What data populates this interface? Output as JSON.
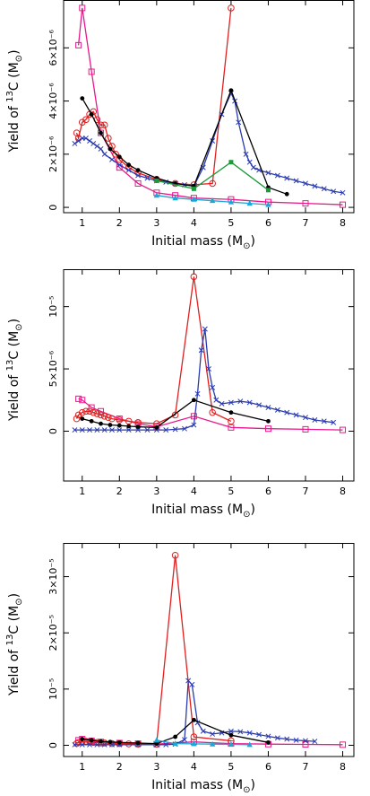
{
  "chart_data": [
    {
      "type": "line",
      "xlabel": "Initial mass (M",
      "xlabel_sub": "⊙",
      "xlabel_end": ")",
      "ylabel": "Yield of ",
      "ylabel_sup": "13",
      "ylabel_end": "C (M",
      "ylabel_sub": "⊙",
      "ylabel_close": ")",
      "xlim": [
        0.5,
        8.3
      ],
      "ylim": [
        -2e-07,
        7.8e-06
      ],
      "xticks": [
        1,
        2,
        3,
        4,
        5,
        6,
        7,
        8
      ],
      "xtick_labels": [
        "1",
        "2",
        "3",
        "4",
        "5",
        "6",
        "7",
        "8"
      ],
      "yticks": [
        0,
        2e-06,
        4e-06,
        6e-06
      ],
      "ytick_labels": [
        "0",
        "2×10⁻⁶",
        "4×10⁻⁶",
        "6×10⁻⁶"
      ],
      "series": [
        {
          "color": "#e8198b",
          "marker": "square",
          "x": [
            0.9,
            1.0,
            1.25,
            1.5,
            2.0,
            2.5,
            3.0,
            3.5,
            4.0,
            5.0,
            6.0,
            7.0,
            8.0
          ],
          "y": [
            6.1e-06,
            7.5e-06,
            5.1e-06,
            2.8e-06,
            1.5e-06,
            9e-07,
            5.5e-07,
            4.5e-07,
            3.5e-07,
            3e-07,
            2e-07,
            1.5e-07,
            1e-07
          ]
        },
        {
          "color": "#e02020",
          "marker": "circle",
          "x": [
            0.85,
            0.9,
            1.0,
            1.1,
            1.2,
            1.3,
            1.4,
            1.5,
            1.6,
            1.7,
            1.8,
            1.9,
            2.0,
            2.25,
            2.5,
            3.0,
            3.5,
            4.0,
            4.5,
            5.0
          ],
          "y": [
            2.8e-06,
            2.6e-06,
            3.2e-06,
            3.3e-06,
            3.5e-06,
            3.6e-06,
            3.3e-06,
            3.1e-06,
            3.1e-06,
            2.6e-06,
            2.3e-06,
            2e-06,
            1.8e-06,
            1.5e-06,
            1.3e-06,
            1.05e-06,
            9e-07,
            8.5e-07,
            9e-07,
            7.5e-06
          ]
        },
        {
          "color": "#2a3bb0",
          "marker": "cross",
          "x": [
            0.8,
            0.9,
            1.0,
            1.1,
            1.2,
            1.3,
            1.4,
            1.5,
            1.6,
            1.8,
            2.0,
            2.25,
            2.5,
            2.75,
            3.0,
            3.25,
            3.5,
            3.75,
            4.0,
            4.25,
            4.5,
            4.75,
            5.0,
            5.1,
            5.2,
            5.4,
            5.5,
            5.6,
            5.75,
            6.0,
            6.25,
            6.5,
            6.75,
            7.0,
            7.25,
            7.5,
            7.75,
            8.0
          ],
          "y": [
            2.4e-06,
            2.5e-06,
            2.6e-06,
            2.6e-06,
            2.5e-06,
            2.4e-06,
            2.3e-06,
            2.2e-06,
            2e-06,
            1.8e-06,
            1.6e-06,
            1.4e-06,
            1.2e-06,
            1.1e-06,
            1e-06,
            9.5e-07,
            9e-07,
            8.5e-07,
            8e-07,
            1.5e-06,
            2.5e-06,
            3.5e-06,
            4.3e-06,
            4e-06,
            3.2e-06,
            2e-06,
            1.7e-06,
            1.5e-06,
            1.4e-06,
            1.3e-06,
            1.2e-06,
            1.1e-06,
            1e-06,
            9e-07,
            8e-07,
            7e-07,
            6e-07,
            5.5e-07
          ]
        },
        {
          "color": "#000000",
          "marker": "dot",
          "x": [
            1.0,
            1.25,
            1.5,
            1.75,
            2.0,
            2.25,
            2.5,
            3.0,
            3.5,
            4.0,
            5.0,
            6.0,
            6.5
          ],
          "y": [
            4.1e-06,
            3.5e-06,
            2.8e-06,
            2.2e-06,
            1.9e-06,
            1.6e-06,
            1.4e-06,
            1.1e-06,
            9e-07,
            8e-07,
            4.4e-06,
            7.5e-07,
            5e-07
          ]
        },
        {
          "color": "#1a9a3a",
          "marker": "square-filled",
          "x": [
            3.0,
            4.0,
            5.0,
            6.0
          ],
          "y": [
            1e-06,
            7e-07,
            1.7e-06,
            6.5e-07
          ]
        },
        {
          "color": "#1aa8d8",
          "marker": "triangle",
          "x": [
            3.0,
            3.5,
            4.0,
            4.5,
            5.0,
            5.5,
            6.0
          ],
          "y": [
            4.5e-07,
            3.5e-07,
            3e-07,
            2.5e-07,
            2e-07,
            1.5e-07,
            1e-07
          ]
        }
      ]
    },
    {
      "type": "line",
      "xlabel": "Initial mass (M",
      "xlabel_sub": "⊙",
      "xlabel_end": ")",
      "ylabel": "Yield of ",
      "ylabel_sup": "13",
      "ylabel_end": "C (M",
      "ylabel_sub": "⊙",
      "ylabel_close": ")",
      "xlim": [
        0.5,
        8.3
      ],
      "ylim": [
        -4e-06,
        1.3e-05
      ],
      "xticks": [
        1,
        2,
        3,
        4,
        5,
        6,
        7,
        8
      ],
      "xtick_labels": [
        "1",
        "2",
        "3",
        "4",
        "5",
        "6",
        "7",
        "8"
      ],
      "yticks": [
        0,
        5e-06,
        1e-05
      ],
      "ytick_labels": [
        "0",
        "5×10⁻⁶",
        "10⁻⁵"
      ],
      "series": [
        {
          "color": "#e8198b",
          "marker": "square",
          "x": [
            0.9,
            1.0,
            1.25,
            1.5,
            2.0,
            2.5,
            3.0,
            4.0,
            5.0,
            6.0,
            7.0,
            8.0
          ],
          "y": [
            2.6e-06,
            2.5e-06,
            1.9e-06,
            1.6e-06,
            1e-06,
            6e-07,
            3.5e-07,
            1.2e-06,
            3e-07,
            2e-07,
            1.5e-07,
            1e-07
          ]
        },
        {
          "color": "#e02020",
          "marker": "circle",
          "x": [
            0.85,
            0.9,
            1.0,
            1.1,
            1.2,
            1.3,
            1.4,
            1.5,
            1.6,
            1.7,
            1.8,
            2.0,
            2.25,
            2.5,
            3.0,
            3.5,
            4.0,
            4.5,
            5.0
          ],
          "y": [
            1e-06,
            1.3e-06,
            1.5e-06,
            1.6e-06,
            1.6e-06,
            1.5e-06,
            1.4e-06,
            1.3e-06,
            1.2e-06,
            1.1e-06,
            1e-06,
            9e-07,
            8e-07,
            7e-07,
            6e-07,
            1.3e-06,
            1.24e-05,
            1.5e-06,
            8e-07
          ]
        },
        {
          "color": "#2a3bb0",
          "marker": "cross",
          "x": [
            0.8,
            1.0,
            1.2,
            1.4,
            1.6,
            1.8,
            2.0,
            2.25,
            2.5,
            2.75,
            3.0,
            3.25,
            3.5,
            3.75,
            4.0,
            4.1,
            4.2,
            4.3,
            4.4,
            4.5,
            4.6,
            4.75,
            5.0,
            5.25,
            5.5,
            5.75,
            6.0,
            6.25,
            6.5,
            6.75,
            7.0,
            7.25,
            7.5,
            7.75
          ],
          "y": [
            1e-07,
            1e-07,
            1e-07,
            1e-07,
            1e-07,
            1e-07,
            1e-07,
            1e-07,
            1e-07,
            1e-07,
            1e-07,
            1e-07,
            1.5e-07,
            2e-07,
            5e-07,
            3e-06,
            6.5e-06,
            8.2e-06,
            5e-06,
            3.5e-06,
            2.5e-06,
            2.2e-06,
            2.3e-06,
            2.4e-06,
            2.3e-06,
            2.1e-06,
            1.9e-06,
            1.7e-06,
            1.5e-06,
            1.3e-06,
            1.1e-06,
            9e-07,
            8e-07,
            7e-07
          ]
        },
        {
          "color": "#000000",
          "marker": "dot",
          "x": [
            1.0,
            1.25,
            1.5,
            1.75,
            2.0,
            2.25,
            2.5,
            3.0,
            4.0,
            5.0,
            6.0
          ],
          "y": [
            1e-06,
            8e-07,
            6e-07,
            5e-07,
            4.5e-07,
            4e-07,
            3.5e-07,
            3e-07,
            2.5e-06,
            1.5e-06,
            8e-07
          ]
        }
      ]
    },
    {
      "type": "line",
      "xlabel": "Initial mass (M",
      "xlabel_sub": "⊙",
      "xlabel_end": ")",
      "ylabel": "Yield of ",
      "ylabel_sup": "13",
      "ylabel_end": "C (M",
      "ylabel_sub": "⊙",
      "ylabel_close": ")",
      "xlim": [
        0.5,
        8.3
      ],
      "ylim": [
        -2e-06,
        3.6e-05
      ],
      "xticks": [
        1,
        2,
        3,
        4,
        5,
        6,
        7,
        8
      ],
      "xtick_labels": [
        "1",
        "2",
        "3",
        "4",
        "5",
        "6",
        "7",
        "8"
      ],
      "yticks": [
        0,
        1e-05,
        2e-05,
        3e-05
      ],
      "ytick_labels": [
        "0",
        "10⁻⁵",
        "2×10⁻⁵",
        "3×10⁻⁵"
      ],
      "series": [
        {
          "color": "#e8198b",
          "marker": "square",
          "x": [
            0.9,
            1.0,
            1.25,
            1.5,
            2.0,
            2.5,
            3.0,
            4.0,
            5.0,
            6.0,
            7.0,
            8.0
          ],
          "y": [
            9e-07,
            1.1e-06,
            8e-07,
            6e-07,
            4e-07,
            3e-07,
            2e-07,
            6e-07,
            3e-07,
            2e-07,
            1.5e-07,
            1e-07
          ]
        },
        {
          "color": "#e02020",
          "marker": "circle",
          "x": [
            0.85,
            0.9,
            1.0,
            1.1,
            1.2,
            1.3,
            1.4,
            1.5,
            1.6,
            1.8,
            2.0,
            2.25,
            2.5,
            3.0,
            3.5,
            4.0,
            5.0
          ],
          "y": [
            3e-07,
            5e-07,
            6e-07,
            7e-07,
            6e-07,
            5e-07,
            5e-07,
            4e-07,
            4e-07,
            3e-07,
            3e-07,
            2.5e-07,
            2e-07,
            2e-07,
            3.38e-05,
            1.5e-06,
            8e-07
          ]
        },
        {
          "color": "#2a3bb0",
          "marker": "cross",
          "x": [
            0.8,
            1.0,
            1.2,
            1.4,
            1.6,
            1.8,
            2.0,
            2.5,
            3.0,
            3.25,
            3.5,
            3.75,
            3.85,
            3.95,
            4.1,
            4.25,
            4.5,
            4.75,
            5.0,
            5.25,
            5.5,
            5.75,
            6.0,
            6.25,
            6.5,
            6.75,
            7.0,
            7.25
          ],
          "y": [
            1e-07,
            1e-07,
            1e-07,
            1e-07,
            1e-07,
            1e-07,
            1e-07,
            1e-07,
            1e-07,
            1e-07,
            2e-07,
            1e-06,
            1.15e-05,
            1.08e-05,
            4e-06,
            2.5e-06,
            2e-06,
            2.2e-06,
            2.5e-06,
            2.4e-06,
            2.2e-06,
            1.9e-06,
            1.6e-06,
            1.3e-06,
            1.1e-06,
            9e-07,
            8e-07,
            7e-07
          ]
        },
        {
          "color": "#000000",
          "marker": "dot",
          "x": [
            1.0,
            1.25,
            1.5,
            1.75,
            2.0,
            2.5,
            3.0,
            3.5,
            4.0,
            5.0,
            6.0
          ],
          "y": [
            1.1e-06,
            9e-07,
            7e-07,
            6e-07,
            5e-07,
            4e-07,
            3e-07,
            1.5e-06,
            4.5e-06,
            1.8e-06,
            5e-07
          ]
        },
        {
          "color": "#1aa8d8",
          "marker": "triangle",
          "x": [
            3.0,
            3.5,
            4.0,
            4.5,
            5.0,
            5.5
          ],
          "y": [
            9e-07,
            3e-07,
            2.5e-07,
            2e-07,
            1.5e-07,
            1e-07
          ]
        }
      ]
    }
  ]
}
